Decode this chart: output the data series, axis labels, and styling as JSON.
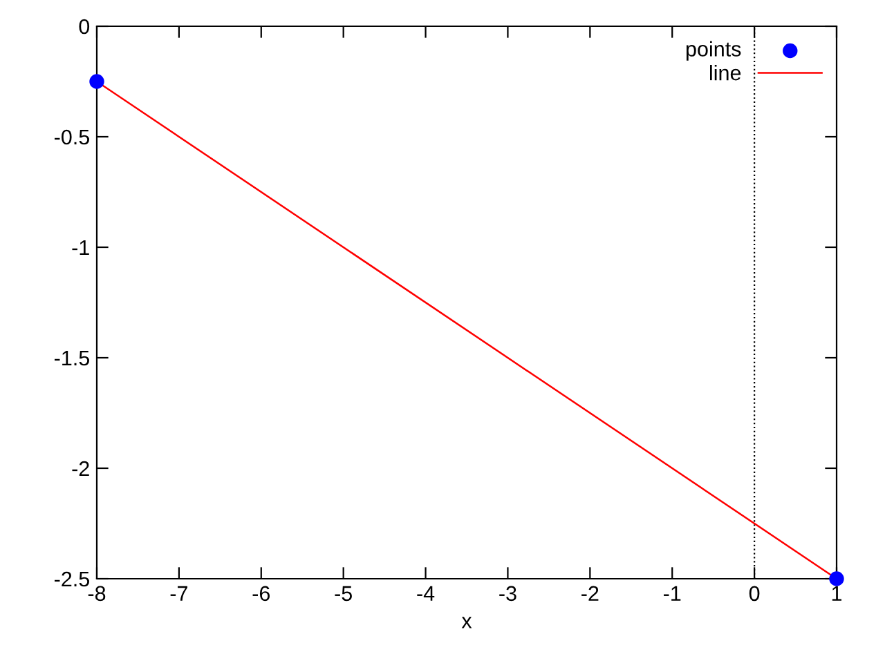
{
  "chart_data": {
    "type": "line",
    "xlabel": "x",
    "x": [
      -8,
      1
    ],
    "series": [
      {
        "name": "points",
        "type": "scatter",
        "color": "#0000ff",
        "marker": "circle",
        "values": [
          -0.25,
          -2.5
        ]
      },
      {
        "name": "line",
        "type": "line",
        "color": "#ff0000",
        "line_style": "solid",
        "values": [
          -0.25,
          -2.5
        ]
      }
    ],
    "xlim": [
      -8,
      1
    ],
    "xticks": [
      -8,
      -7,
      -6,
      -5,
      -4,
      -3,
      -2,
      -1,
      0,
      1
    ],
    "ylim": [
      -2.5,
      0
    ],
    "yticks": [
      -2.5,
      -2,
      -1.5,
      -1,
      -0.5,
      0
    ],
    "ref_lines": [
      {
        "axis": "x",
        "value": 0,
        "color": "#000000",
        "line_style": "dotted"
      }
    ],
    "grid": false,
    "legend": "top right"
  }
}
